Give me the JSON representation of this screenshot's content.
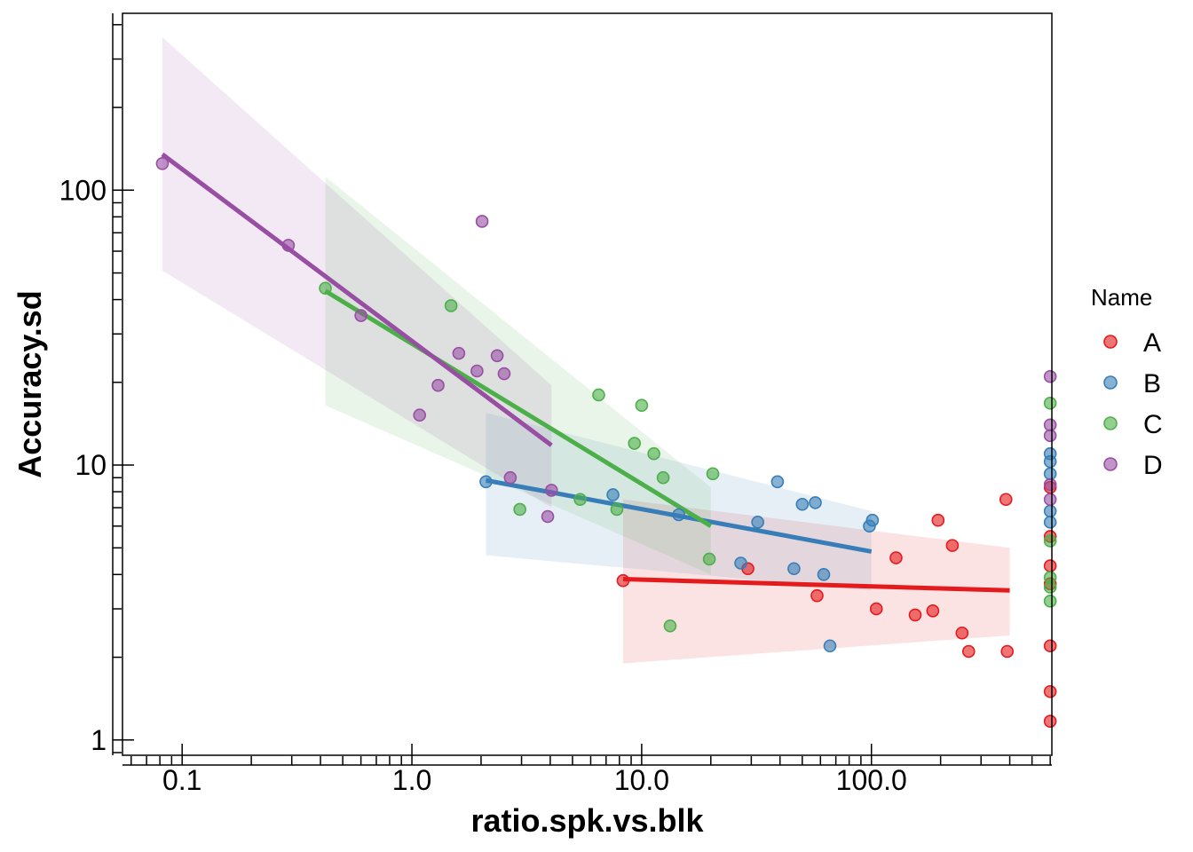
{
  "chart_data": {
    "type": "scatter",
    "xlabel": "ratio.spk.vs.blk",
    "ylabel": "Accuracy.sd",
    "xscale": "log",
    "yscale": "log",
    "xlim": [
      0.055,
      610
    ],
    "ylim": [
      0.88,
      440
    ],
    "xticks": [
      {
        "value": 0.1,
        "label": "0.1"
      },
      {
        "value": 1,
        "label": "1.0"
      },
      {
        "value": 10,
        "label": "10.0"
      },
      {
        "value": 100,
        "label": "100.0"
      }
    ],
    "yticks": [
      {
        "value": 1,
        "label": "1"
      },
      {
        "value": 10,
        "label": "10"
      },
      {
        "value": 100,
        "label": "100"
      }
    ],
    "grid": false,
    "legend": {
      "title": "Name",
      "position": "right"
    },
    "series": [
      {
        "name": "A",
        "color": "#E41A1C",
        "points": [
          [
            8.3,
            3.8
          ],
          [
            29,
            4.2
          ],
          [
            58,
            3.35
          ],
          [
            105,
            3.0
          ],
          [
            128,
            4.6
          ],
          [
            155,
            2.85
          ],
          [
            185,
            2.95
          ],
          [
            195,
            6.3
          ],
          [
            225,
            5.1
          ],
          [
            248,
            2.45
          ],
          [
            265,
            2.1
          ],
          [
            390,
            2.1
          ],
          [
            385,
            7.5
          ],
          [
            600,
            4.3
          ],
          [
            600,
            3.7
          ],
          [
            600,
            2.2
          ],
          [
            600,
            1.5
          ],
          [
            600,
            1.17
          ],
          [
            600,
            5.5
          ],
          [
            600,
            8.3
          ]
        ],
        "fit": {
          "x": [
            8.3,
            400
          ],
          "y": [
            3.85,
            3.5
          ]
        },
        "band_upper": [
          7.5,
          5.0
        ],
        "band_lower": [
          1.9,
          2.4
        ]
      },
      {
        "name": "B",
        "color": "#377EB8",
        "points": [
          [
            2.1,
            8.7
          ],
          [
            7.5,
            7.8
          ],
          [
            14.5,
            6.6
          ],
          [
            27,
            4.4
          ],
          [
            32,
            6.2
          ],
          [
            39,
            8.7
          ],
          [
            46,
            4.2
          ],
          [
            50,
            7.2
          ],
          [
            57,
            7.3
          ],
          [
            62,
            4.0
          ],
          [
            66,
            2.2
          ],
          [
            98,
            6.0
          ],
          [
            101,
            6.3
          ],
          [
            600,
            11.0
          ],
          [
            600,
            10.3
          ],
          [
            600,
            9.3
          ],
          [
            600,
            6.8
          ],
          [
            600,
            6.2
          ]
        ],
        "fit": {
          "x": [
            2.1,
            100
          ],
          "y": [
            8.8,
            4.85
          ]
        },
        "band_upper": [
          15.5,
          6.8
        ],
        "band_lower": [
          4.7,
          3.5
        ]
      },
      {
        "name": "C",
        "color": "#4DAF4A",
        "points": [
          [
            0.42,
            44
          ],
          [
            1.48,
            38
          ],
          [
            2.95,
            6.9
          ],
          [
            5.4,
            7.5
          ],
          [
            6.5,
            18
          ],
          [
            7.8,
            6.9
          ],
          [
            9.3,
            12
          ],
          [
            10,
            16.5
          ],
          [
            11.3,
            11
          ],
          [
            12.4,
            9
          ],
          [
            13.3,
            2.6
          ],
          [
            19.7,
            4.55
          ],
          [
            20.4,
            9.3
          ],
          [
            600,
            16.8
          ],
          [
            600,
            5.3
          ],
          [
            600,
            3.6
          ],
          [
            600,
            3.2
          ],
          [
            600,
            3.9
          ]
        ],
        "fit": {
          "x": [
            0.42,
            20
          ],
          "y": [
            43,
            6.0
          ]
        },
        "band_upper": [
          112,
          8.3
        ],
        "band_lower": [
          16.5,
          4.0
        ]
      },
      {
        "name": "D",
        "color": "#984EA3",
        "points": [
          [
            0.082,
            125
          ],
          [
            0.29,
            63
          ],
          [
            0.6,
            35
          ],
          [
            1.08,
            15.2
          ],
          [
            1.3,
            19.5
          ],
          [
            1.6,
            25.5
          ],
          [
            1.92,
            22
          ],
          [
            2.02,
            77
          ],
          [
            2.35,
            25
          ],
          [
            2.52,
            21.5
          ],
          [
            2.68,
            9
          ],
          [
            3.9,
            6.5
          ],
          [
            4.05,
            8.1
          ],
          [
            600,
            21
          ],
          [
            600,
            14
          ],
          [
            600,
            12.8
          ],
          [
            600,
            8.5
          ],
          [
            600,
            7.5
          ]
        ],
        "fit": {
          "x": [
            0.082,
            4.05
          ],
          "y": [
            135,
            11.8
          ]
        },
        "band_upper": [
          360,
          19.5
        ],
        "band_lower": [
          51,
          7.0
        ]
      }
    ]
  }
}
